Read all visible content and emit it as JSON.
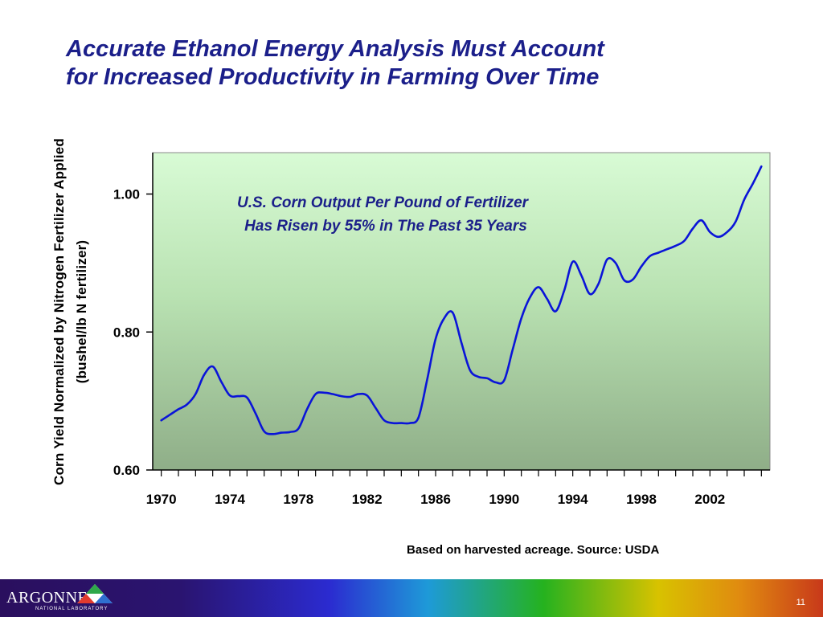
{
  "slide": {
    "title_line1": "Accurate Ethanol Energy Analysis Must Account",
    "title_line2": "for Increased Productivity in Farming Over Time",
    "footnote": "Based on harvested acreage. Source: USDA",
    "page_number": "11",
    "logo_text": "ARGONNE",
    "logo_subtext": "NATIONAL LABORATORY"
  },
  "chart_data": {
    "type": "line",
    "title": "",
    "ylabel_line1": "Corn Yield Normalized by Nitrogen Fertilizer Applied",
    "ylabel_line2": "(bushel/lb N fertilizer)",
    "xlabel": "",
    "x_tick_labels": [
      "1970",
      "1974",
      "1978",
      "1982",
      "1986",
      "1990",
      "1994",
      "1998",
      "2002"
    ],
    "x_tick_values": [
      1970,
      1974,
      1978,
      1982,
      1986,
      1990,
      1994,
      1998,
      2002
    ],
    "y_tick_labels": [
      "0.60",
      "0.80",
      "1.00"
    ],
    "y_tick_values": [
      0.6,
      0.8,
      1.0
    ],
    "xlim": [
      1969.5,
      2005.5
    ],
    "ylim": [
      0.6,
      1.06
    ],
    "grid": false,
    "legend": "none",
    "line_color": "#0a14d8",
    "annotation_line1": "U.S. Corn Output Per Pound of Fertilizer",
    "annotation_line2": "Has Risen by 55% in The Past 35 Years",
    "series": [
      {
        "x": [
          1970,
          1970.5,
          1971,
          1971.5,
          1972,
          1972.5,
          1973,
          1973.5,
          1974,
          1974.5,
          1975,
          1975.5,
          1976,
          1976.5,
          1977,
          1977.5,
          1978,
          1978.5,
          1979,
          1979.5,
          1980,
          1980.5,
          1981,
          1981.5,
          1982,
          1982.5,
          1983,
          1983.5,
          1984,
          1984.5,
          1985,
          1985.5,
          1986,
          1986.5,
          1987,
          1987.5,
          1988,
          1988.5,
          1989,
          1989.5,
          1990,
          1990.5,
          1991,
          1991.5,
          1992,
          1992.5,
          1993,
          1993.5,
          1994,
          1994.5,
          1995,
          1995.5,
          1996,
          1996.5,
          1997,
          1997.5,
          1998,
          1998.5,
          1999,
          1999.5,
          2000,
          2000.5,
          2001,
          2001.5,
          2002,
          2002.5,
          2003,
          2003.5,
          2004,
          2004.5,
          2005
        ],
        "y": [
          0.672,
          0.68,
          0.688,
          0.695,
          0.71,
          0.738,
          0.75,
          0.728,
          0.708,
          0.707,
          0.705,
          0.682,
          0.656,
          0.652,
          0.654,
          0.655,
          0.66,
          0.688,
          0.71,
          0.712,
          0.71,
          0.707,
          0.706,
          0.71,
          0.708,
          0.69,
          0.672,
          0.668,
          0.668,
          0.668,
          0.676,
          0.73,
          0.79,
          0.82,
          0.828,
          0.785,
          0.745,
          0.735,
          0.733,
          0.727,
          0.73,
          0.775,
          0.82,
          0.85,
          0.865,
          0.848,
          0.83,
          0.86,
          0.902,
          0.882,
          0.855,
          0.87,
          0.905,
          0.9,
          0.875,
          0.876,
          0.895,
          0.91,
          0.915,
          0.92,
          0.925,
          0.932,
          0.95,
          0.962,
          0.945,
          0.938,
          0.945,
          0.96,
          0.992,
          1.015,
          1.04
        ]
      }
    ]
  }
}
